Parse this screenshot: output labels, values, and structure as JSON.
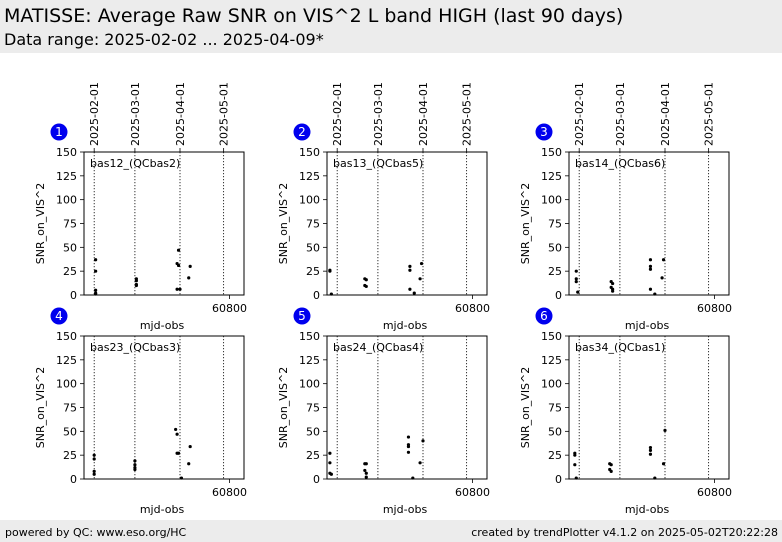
{
  "header": {
    "title": "MATISSE: Average Raw SNR on VIS^2 L band HIGH (last 90 days)",
    "subtitle": "Data range: 2025-02-02 ... 2025-04-09*"
  },
  "footer": {
    "left": "powered by QC: www.eso.org/HC",
    "right": "created by trendPlotter v4.1.2 on 2025-05-02T20:22:28"
  },
  "colors": {
    "badge": "#0000ee",
    "points": "#000000",
    "background": "#ececec"
  },
  "chart_data": {
    "type": "scatter",
    "xlabel": "mjd-obs",
    "ylabel": "SNR_on_VIS^2",
    "xlim": [
      60700,
      60810
    ],
    "ylim": [
      0,
      150
    ],
    "yticks": [
      0,
      25,
      50,
      75,
      100,
      125,
      150
    ],
    "xticks": [
      60800
    ],
    "date_ticks": [
      {
        "label": "2025-02-01",
        "mjd": 60707
      },
      {
        "label": "2025-03-01",
        "mjd": 60735
      },
      {
        "label": "2025-04-01",
        "mjd": 60766
      },
      {
        "label": "2025-05-01",
        "mjd": 60796
      }
    ],
    "panels": [
      {
        "badge": "1",
        "label": "bas12_(QCbas2)",
        "points": [
          [
            60708,
            37
          ],
          [
            60708,
            25
          ],
          [
            60708,
            5
          ],
          [
            60708,
            2
          ],
          [
            60708,
            1
          ],
          [
            60736,
            17
          ],
          [
            60736,
            15
          ],
          [
            60736,
            11
          ],
          [
            60736,
            10
          ],
          [
            60764,
            6
          ],
          [
            60764,
            33
          ],
          [
            60765,
            47
          ],
          [
            60765,
            31
          ],
          [
            60766,
            6
          ],
          [
            60772,
            18
          ],
          [
            60773,
            30
          ]
        ]
      },
      {
        "badge": "2",
        "label": "bas13_(QCbas5)",
        "points": [
          [
            60702,
            26
          ],
          [
            60702,
            25
          ],
          [
            60703,
            1
          ],
          [
            60726,
            17
          ],
          [
            60726,
            10
          ],
          [
            60727,
            16
          ],
          [
            60727,
            9
          ],
          [
            60757,
            30
          ],
          [
            60757,
            26
          ],
          [
            60757,
            6
          ],
          [
            60760,
            2
          ],
          [
            60764,
            17
          ],
          [
            60765,
            33
          ]
        ]
      },
      {
        "badge": "3",
        "label": "bas14_(QCbas6)",
        "points": [
          [
            60705,
            25
          ],
          [
            60705,
            17
          ],
          [
            60705,
            14
          ],
          [
            60706,
            3
          ],
          [
            60729,
            14
          ],
          [
            60729,
            8
          ],
          [
            60730,
            12
          ],
          [
            60730,
            6
          ],
          [
            60730,
            4
          ],
          [
            60756,
            37
          ],
          [
            60756,
            30
          ],
          [
            60756,
            27
          ],
          [
            60756,
            6
          ],
          [
            60759,
            1
          ],
          [
            60764,
            18
          ],
          [
            60765,
            37
          ]
        ]
      },
      {
        "badge": "4",
        "label": "bas23_(QCbas3)",
        "points": [
          [
            60707,
            25
          ],
          [
            60707,
            21
          ],
          [
            60707,
            8
          ],
          [
            60707,
            5
          ],
          [
            60735,
            19
          ],
          [
            60735,
            15
          ],
          [
            60735,
            12
          ],
          [
            60735,
            10
          ],
          [
            60763,
            52
          ],
          [
            60764,
            47
          ],
          [
            60764,
            27
          ],
          [
            60765,
            27
          ],
          [
            60767,
            1
          ],
          [
            60772,
            16
          ],
          [
            60773,
            34
          ]
        ]
      },
      {
        "badge": "5",
        "label": "bas24_(QCbas4)",
        "points": [
          [
            60702,
            27
          ],
          [
            60702,
            17
          ],
          [
            60702,
            6
          ],
          [
            60703,
            5
          ],
          [
            60726,
            16
          ],
          [
            60726,
            9
          ],
          [
            60727,
            16
          ],
          [
            60727,
            6
          ],
          [
            60727,
            2
          ],
          [
            60756,
            44
          ],
          [
            60756,
            36
          ],
          [
            60756,
            34
          ],
          [
            60756,
            28
          ],
          [
            60759,
            1
          ],
          [
            60764,
            17
          ],
          [
            60766,
            40
          ]
        ]
      },
      {
        "badge": "6",
        "label": "bas34_(QCbas1)",
        "points": [
          [
            60704,
            27
          ],
          [
            60704,
            25
          ],
          [
            60704,
            15
          ],
          [
            60705,
            1
          ],
          [
            60728,
            16
          ],
          [
            60728,
            10
          ],
          [
            60729,
            15
          ],
          [
            60729,
            8
          ],
          [
            60756,
            33
          ],
          [
            60756,
            30
          ],
          [
            60756,
            26
          ],
          [
            60759,
            1
          ],
          [
            60765,
            16
          ],
          [
            60766,
            51
          ]
        ]
      }
    ]
  }
}
